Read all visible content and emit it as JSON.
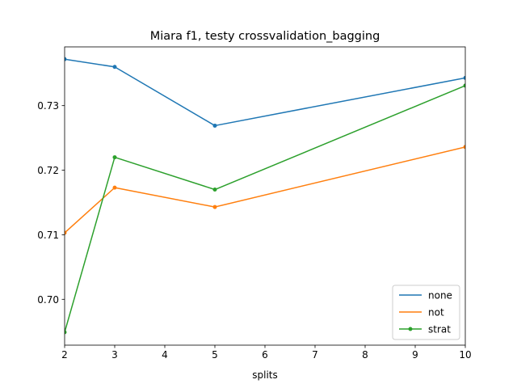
{
  "chart_data": {
    "type": "line",
    "title": "Miara f1, testy crossvalidation_bagging",
    "xlabel": "splits",
    "ylabel": "",
    "xlim": [
      2,
      10
    ],
    "ylim": [
      0.6929,
      0.7391
    ],
    "xticks": [
      2,
      3,
      4,
      5,
      6,
      7,
      8,
      9,
      10
    ],
    "xtick_labels": [
      "2",
      "3",
      "4",
      "5",
      "6",
      "7",
      "8",
      "9",
      "10"
    ],
    "yticks": [
      0.7,
      0.71,
      0.72,
      0.73
    ],
    "ytick_labels": [
      "0.70",
      "0.71",
      "0.72",
      "0.73"
    ],
    "grid": false,
    "legend_position": "lower-right",
    "x": [
      2,
      3,
      5,
      10
    ],
    "series": [
      {
        "name": "none",
        "color": "#1f77b4",
        "values": [
          0.7372,
          0.736,
          0.7269,
          0.7343
        ]
      },
      {
        "name": "not",
        "color": "#ff7f0e",
        "values": [
          0.7103,
          0.7173,
          0.7143,
          0.7236
        ]
      },
      {
        "name": "strat",
        "color": "#2ca02c",
        "values": [
          0.6949,
          0.722,
          0.717,
          0.7331
        ]
      }
    ]
  }
}
